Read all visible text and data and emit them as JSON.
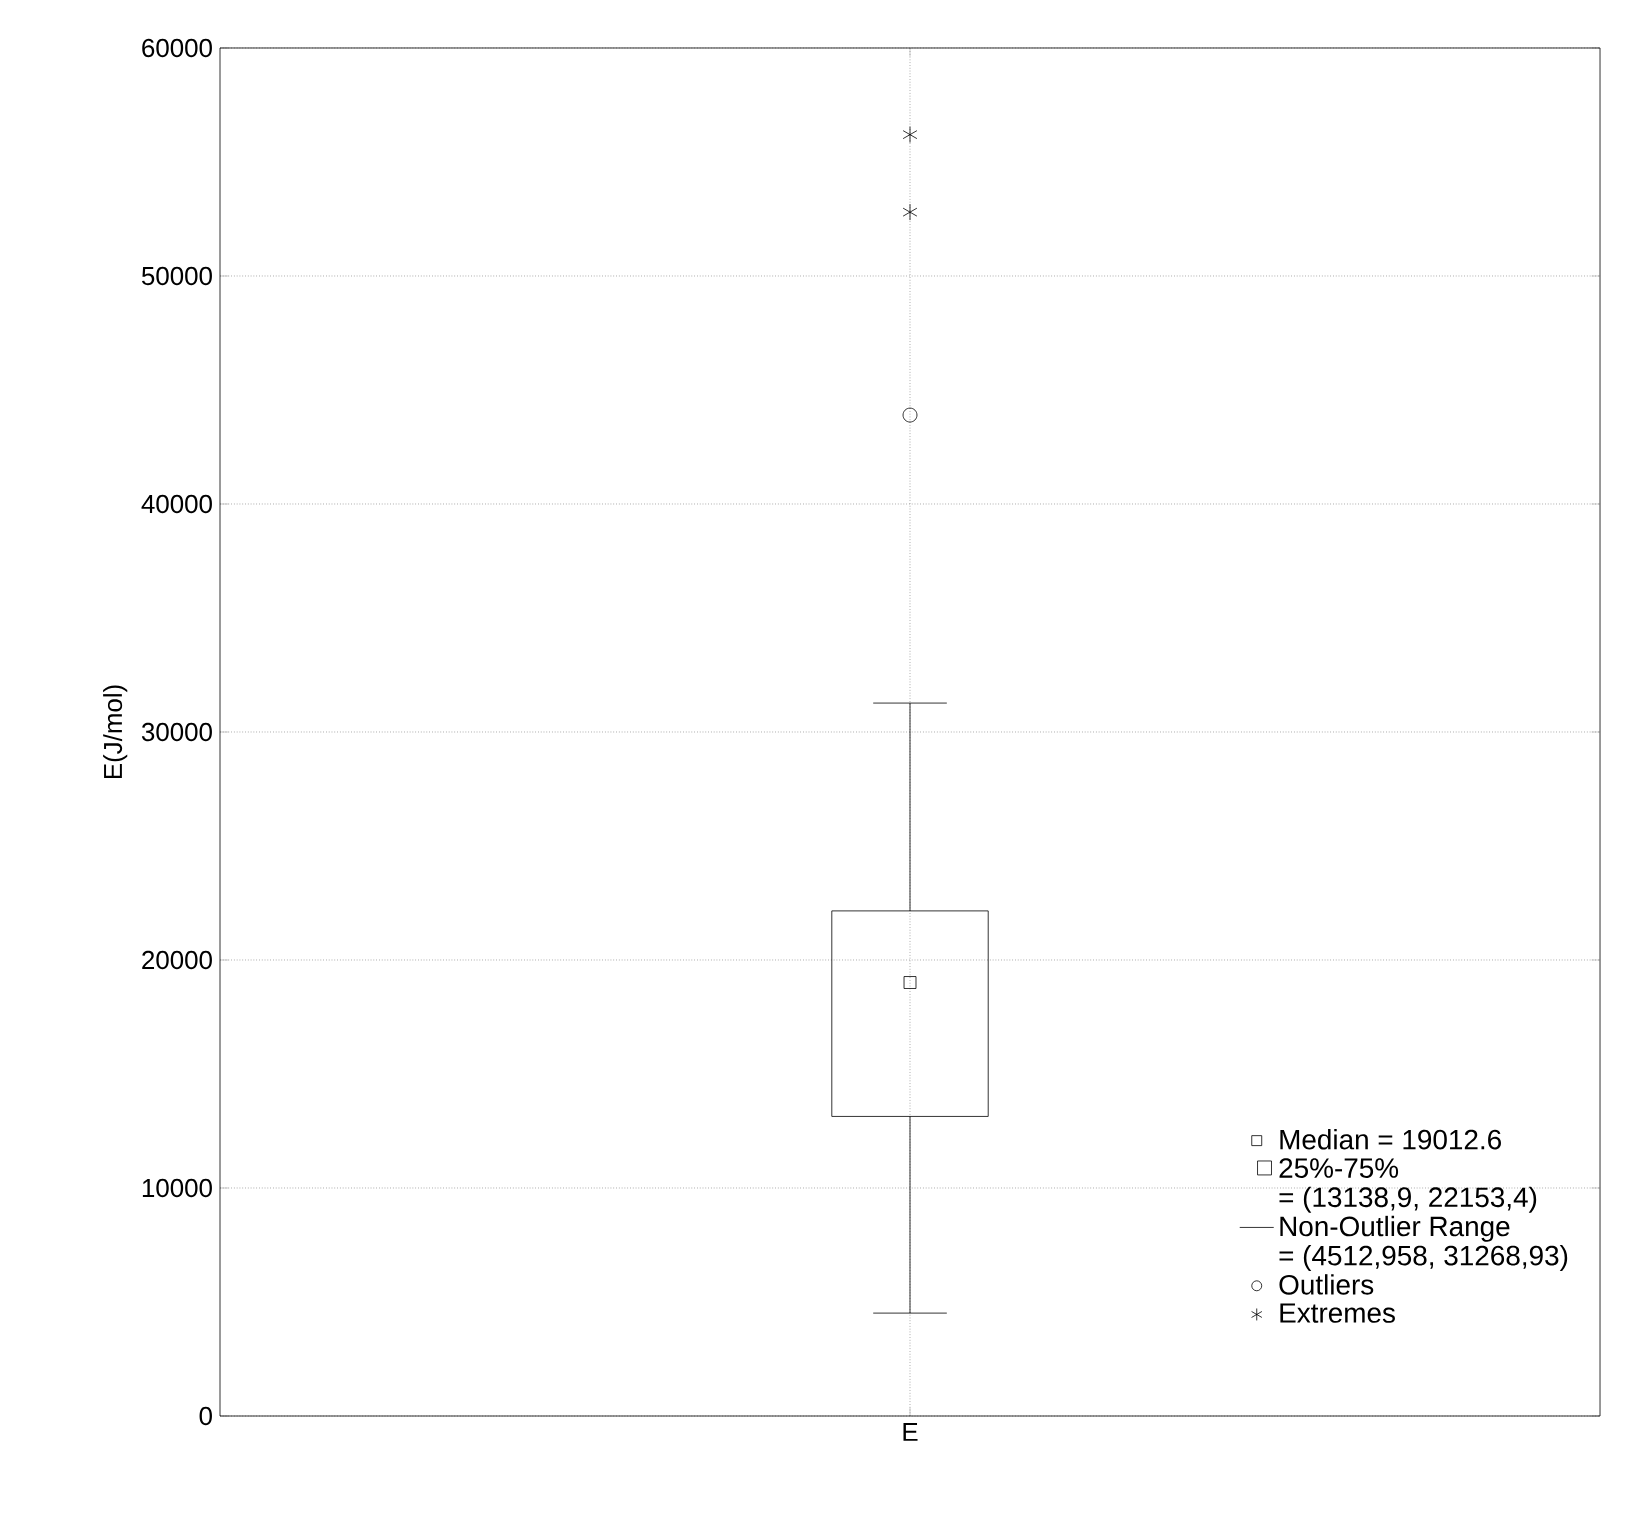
{
  "chart_data": {
    "type": "box",
    "ylabel": "E(J/mol)",
    "categories": [
      "E"
    ],
    "ylim": [
      0,
      60000
    ],
    "yticks": [
      0,
      10000,
      20000,
      30000,
      40000,
      50000,
      60000
    ],
    "grid": true,
    "legend": "bottom right",
    "annotations": [
      "Median = 19012.6",
      "25%-75%",
      "= (13138,9, 22153,4)",
      "Non-Outlier Range",
      "= (4512,958, 31268,93)",
      "Outliers"
    ],
    "series": [
      {
        "boxes": [
          {
            "low": 4512.958,
            "q1": 13138.9,
            "median": 19012.6,
            "q3": 22153.4,
            "high": 31268.93,
            "outliers": [
              43900
            ]
          }
        ]
      },
      {
        "type": "scatter",
        "name": "Extremes",
        "x": [
          "E",
          "E"
        ],
        "values": [
          52800,
          56200
        ],
        "marker": "cross"
      }
    ]
  }
}
